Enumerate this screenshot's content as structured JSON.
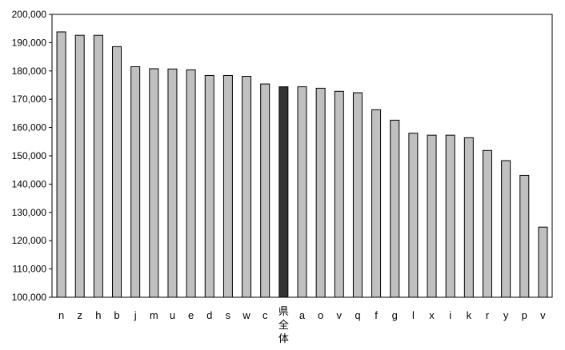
{
  "chart_data": {
    "type": "bar",
    "title": "",
    "xlabel": "",
    "ylabel": "",
    "ylim": [
      100000,
      200000
    ],
    "ytick_step": 10000,
    "grid": false,
    "legend": "none",
    "bar_color": "#c0c0c0",
    "highlight_color": "#333333",
    "highlight_category": "県全体",
    "categories": [
      "n",
      "z",
      "h",
      "b",
      "j",
      "m",
      "u",
      "e",
      "d",
      "s",
      "w",
      "c",
      "県全体",
      "a",
      "o",
      "v",
      "q",
      "f",
      "g",
      "l",
      "x",
      "i",
      "k",
      "r",
      "y",
      "p",
      "v"
    ],
    "values": [
      193800,
      192600,
      192600,
      188600,
      181500,
      180800,
      180700,
      180400,
      178400,
      178400,
      178100,
      175400,
      174400,
      174400,
      173900,
      172800,
      172300,
      166300,
      162600,
      158000,
      157300,
      157300,
      156400,
      151900,
      148300,
      143100,
      124800
    ]
  }
}
